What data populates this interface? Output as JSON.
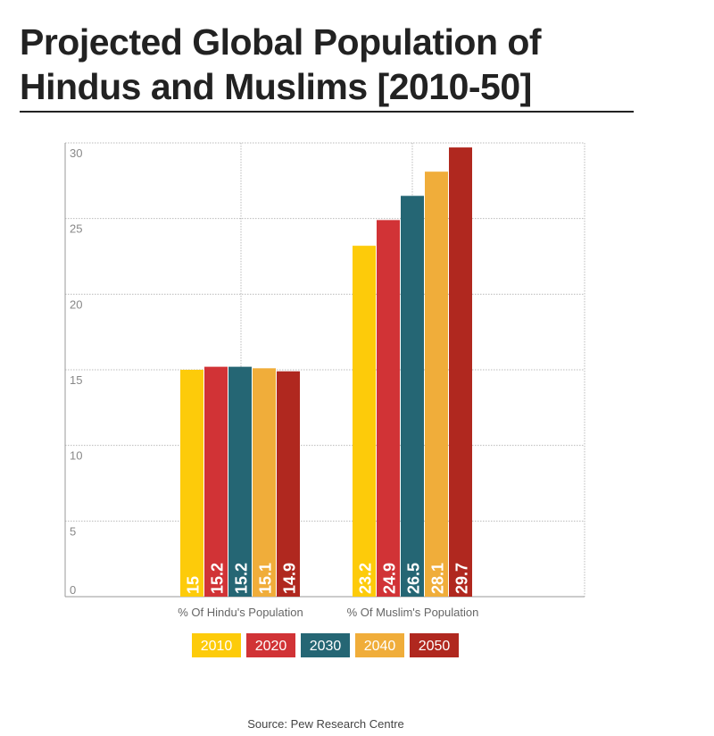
{
  "chart_data": {
    "type": "bar",
    "title": "Projected Global Population of Hindus and Muslims [2010-50]",
    "categories": [
      "% Of Hindu's Population",
      "% Of Muslim's Population"
    ],
    "series": [
      {
        "name": "2010",
        "color": "#FDCB0A",
        "values": [
          15,
          23.2
        ]
      },
      {
        "name": "2020",
        "color": "#D13336",
        "values": [
          15.2,
          24.9
        ]
      },
      {
        "name": "2030",
        "color": "#256674",
        "values": [
          15.2,
          26.5
        ]
      },
      {
        "name": "2040",
        "color": "#F0AD3A",
        "values": [
          15.1,
          28.1
        ]
      },
      {
        "name": "2050",
        "color": "#B0281F",
        "values": [
          14.9,
          29.7
        ]
      }
    ],
    "data_labels": [
      [
        "15",
        "23.2"
      ],
      [
        "15.2",
        "24.9"
      ],
      [
        "15.2",
        "26.5"
      ],
      [
        "15.1",
        "28.1"
      ],
      [
        "14.9",
        "29.7"
      ]
    ],
    "yticks": [
      "0",
      "5",
      "10",
      "15",
      "20",
      "25",
      "30"
    ],
    "ylim": [
      0,
      30
    ],
    "grid": true,
    "legend": "bottom",
    "source": "Source: Pew Research Centre"
  }
}
